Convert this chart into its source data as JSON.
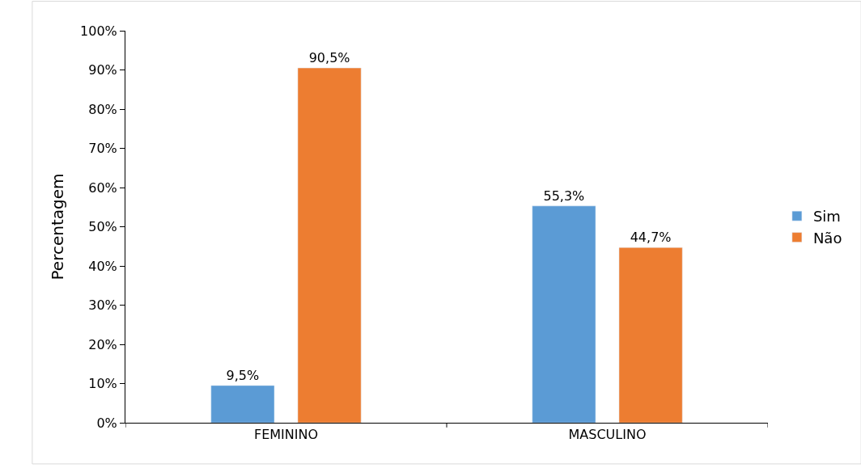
{
  "chart_data": {
    "type": "bar",
    "ylabel": "Percentagem",
    "categories": [
      "FEMININO",
      "MASCULINO"
    ],
    "series": [
      {
        "name": "Sim",
        "color": "#5b9bd5",
        "values": [
          9.5,
          55.3
        ],
        "value_labels": [
          "9,5%",
          "55,3%"
        ]
      },
      {
        "name": "Não",
        "color": "#ed7d31",
        "values": [
          90.5,
          44.7
        ],
        "value_labels": [
          "90,5%",
          "44,7%"
        ]
      }
    ],
    "ylim": [
      0,
      100
    ],
    "yticks": [
      {
        "value": 0,
        "label": "0%"
      },
      {
        "value": 10,
        "label": "10%"
      },
      {
        "value": 20,
        "label": "20%"
      },
      {
        "value": 30,
        "label": "30%"
      },
      {
        "value": 40,
        "label": "40%"
      },
      {
        "value": 50,
        "label": "50%"
      },
      {
        "value": 60,
        "label": "60%"
      },
      {
        "value": 70,
        "label": "70%"
      },
      {
        "value": 80,
        "label": "80%"
      },
      {
        "value": 90,
        "label": "90%"
      },
      {
        "value": 100,
        "label": "100%"
      }
    ],
    "grid": false,
    "legend": "right"
  }
}
